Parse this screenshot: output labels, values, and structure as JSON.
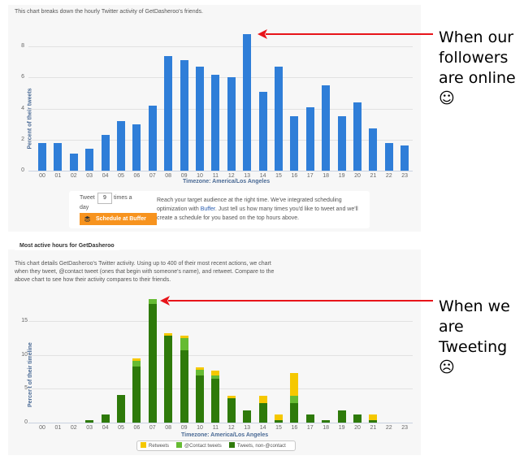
{
  "top_panel": {
    "description": "This chart breaks down the hourly Twitter activity of GetDasheroo's friends.",
    "ylabel": "Percent of their tweets",
    "xtitle": "Timezone: America/Los Angeles",
    "yticks": [
      "0",
      "2",
      "4",
      "6",
      "8"
    ],
    "bar_color": "#2f7ed8"
  },
  "buffer": {
    "tweet_label": "Tweet",
    "tweet_value": "9",
    "times_label": "times a",
    "day_label": "day",
    "button_label": "Schedule at Buffer",
    "desc_part1": "Reach your target audience at the right time. We've integrated scheduling optimization with ",
    "desc_link": "Buffer",
    "desc_part2": ". Just tell us how many times you'd like to tweet and we'll create a schedule for you based on the top hours above.",
    "button_color": "#f7931e"
  },
  "bottom_panel": {
    "section_title": "Most active hours for GetDasheroo",
    "description": "This chart details GetDasheroo's Twitter activity. Using up to 400 of their most recent actions, we chart when they tweet, @contact tweet (ones that begin with someone's name), and retweet. Compare to the above chart to see how their activity compares to their friends.",
    "ylabel": "Percent of their timeline",
    "xtitle": "Timezone: America/Los Angeles",
    "yticks": [
      "0",
      "5",
      "10",
      "15"
    ],
    "legend": [
      {
        "label": "Retweets",
        "color": "#f5c800"
      },
      {
        "label": "@Contact tweets",
        "color": "#66bb33"
      },
      {
        "label": "Tweets, non-@contact",
        "color": "#2e7a0a"
      }
    ]
  },
  "annotations": {
    "top": {
      "line1": "When our",
      "line2": "followers",
      "line3": "are online",
      "emoji": "☺"
    },
    "bottom": {
      "line1": "When we",
      "line2": "are",
      "line3": "Tweeting",
      "emoji": "☹"
    },
    "arrow_color": "#e8141a"
  },
  "chart_data": [
    {
      "type": "bar",
      "title": "Hourly Twitter activity of GetDasheroo's friends",
      "xlabel": "Timezone: America/Los Angeles",
      "ylabel": "Percent of their tweets",
      "ylim": [
        0,
        9
      ],
      "yticks": [
        0,
        2,
        4,
        6,
        8
      ],
      "grid": true,
      "categories": [
        "00",
        "01",
        "02",
        "03",
        "04",
        "05",
        "06",
        "07",
        "08",
        "09",
        "10",
        "11",
        "12",
        "13",
        "14",
        "15",
        "16",
        "17",
        "18",
        "19",
        "20",
        "21",
        "22",
        "23"
      ],
      "values": [
        1.8,
        1.8,
        1.1,
        1.4,
        2.3,
        3.2,
        3.0,
        4.2,
        7.4,
        7.1,
        6.7,
        6.2,
        6.0,
        8.8,
        5.1,
        6.7,
        3.5,
        4.1,
        5.5,
        3.5,
        4.4,
        2.7,
        1.8,
        1.6
      ],
      "annotation": "When our followers are online ☺ (arrow pointing at hour 13)"
    },
    {
      "type": "bar",
      "stacked": true,
      "title": "Most active hours for GetDasheroo",
      "xlabel": "Timezone: America/Los Angeles",
      "ylabel": "Percent of their timeline",
      "ylim": [
        0,
        19
      ],
      "yticks": [
        0,
        5,
        10,
        15
      ],
      "grid": true,
      "legend_position": "bottom",
      "categories": [
        "00",
        "01",
        "02",
        "03",
        "04",
        "05",
        "06",
        "07",
        "08",
        "09",
        "10",
        "11",
        "12",
        "13",
        "14",
        "15",
        "16",
        "17",
        "18",
        "19",
        "20",
        "21",
        "22",
        "23"
      ],
      "series": [
        {
          "name": "Tweets, non-@contact",
          "color": "#2e7a0a",
          "values": [
            0,
            0,
            0,
            0.4,
            1.2,
            4.1,
            8.3,
            17.5,
            12.8,
            10.7,
            7.0,
            6.5,
            3.6,
            1.8,
            2.9,
            0.4,
            2.9,
            1.2,
            0.4,
            1.8,
            1.2,
            0.4,
            0,
            0
          ]
        },
        {
          "name": "@Contact tweets",
          "color": "#66bb33",
          "values": [
            0,
            0,
            0,
            0,
            0,
            0,
            0.8,
            0.7,
            0,
            1.7,
            0.8,
            0.4,
            0,
            0,
            0,
            0,
            1.1,
            0,
            0,
            0,
            0,
            0,
            0,
            0
          ]
        },
        {
          "name": "Retweets",
          "color": "#f5c800",
          "values": [
            0,
            0,
            0,
            0,
            0,
            0,
            0.4,
            0,
            0.4,
            0.4,
            0.4,
            0.8,
            0.4,
            0,
            1.1,
            0.8,
            3.3,
            0,
            0,
            0,
            0,
            0.8,
            0,
            0
          ]
        }
      ],
      "annotation": "When we are Tweeting ☹ (arrow pointing at hour 07)"
    }
  ]
}
